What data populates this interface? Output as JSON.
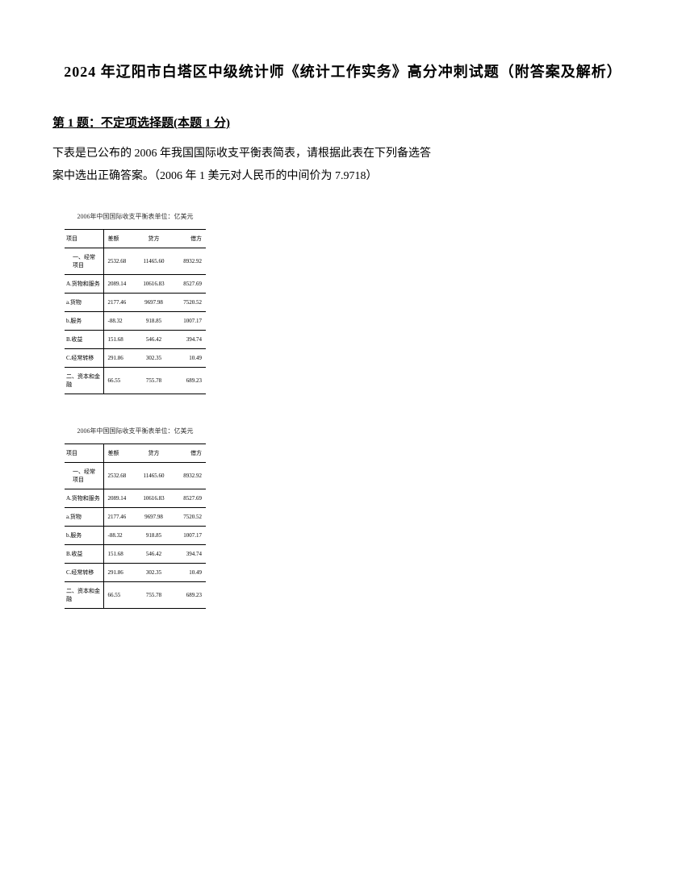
{
  "title": "2024 年辽阳市白塔区中级统计师《统计工作实务》高分冲刺试题（附答案及解析）",
  "question": {
    "number": "第 1 题：",
    "type": "不定项选择题(本题 1 分)",
    "body_line1": "下表是已公布的 2006 年我国国际收支平衡表简表，请根据此表在下列备选答",
    "body_line2": "案中选出正确答案。（2006 年 1 美元对人民币的中间价为 7.9718）"
  },
  "table": {
    "caption": "2006年中国国际收支平衡表单位：亿美元",
    "header": {
      "c1": "项目",
      "c2": "差额",
      "c3": "贷方",
      "c4": "借方"
    },
    "rows": [
      {
        "c1": "一、经常项目",
        "c2": "2532.68",
        "c3": "11465.60",
        "c4": "8932.92",
        "indent": true
      },
      {
        "c1": "A.货物和服务",
        "c2": "2089.14",
        "c3": "10616.83",
        "c4": "8527.69",
        "indent": false
      },
      {
        "c1": "a.货物",
        "c2": "2177.46",
        "c3": "9697.98",
        "c4": "7520.52",
        "indent": false
      },
      {
        "c1": "b.服务",
        "c2": "-88.32",
        "c3": "918.85",
        "c4": "1007.17",
        "indent": false
      },
      {
        "c1": "B.收益",
        "c2": "151.68",
        "c3": "546.42",
        "c4": "394.74",
        "indent": false
      },
      {
        "c1": "C.经常转移",
        "c2": "291.86",
        "c3": "302.35",
        "c4": "10.49",
        "indent": false
      },
      {
        "c1": "二、资本和金融",
        "c2": "66.55",
        "c3": "755.78",
        "c4": "689.23",
        "indent": false
      }
    ]
  },
  "styles": {
    "page_bg": "#ffffff",
    "text_color": "#000000",
    "title_fontsize": 18,
    "body_fontsize": 14,
    "table_fontsize": 7,
    "border_color": "#000000"
  }
}
